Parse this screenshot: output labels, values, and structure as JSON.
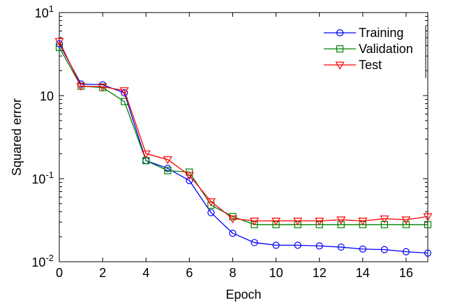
{
  "chart_data": {
    "type": "line",
    "xlabel": "Epoch",
    "ylabel": "Squared error",
    "y_scale": "log",
    "xlim": [
      0,
      17
    ],
    "ylim": [
      0.01,
      10
    ],
    "x_ticks": [
      0,
      2,
      4,
      6,
      8,
      10,
      12,
      14,
      16
    ],
    "y_ticks": [
      {
        "value": 0.01,
        "base": "10",
        "exp": "-2"
      },
      {
        "value": 0.1,
        "base": "10",
        "exp": "-1"
      },
      {
        "value": 1,
        "base": "10",
        "exp": ""
      },
      {
        "value": 10,
        "base": "10",
        "exp": "1"
      }
    ],
    "grid": false,
    "legend_position": "top-right",
    "x": [
      0,
      1,
      2,
      3,
      4,
      5,
      6,
      7,
      8,
      9,
      10,
      11,
      12,
      13,
      14,
      15,
      16,
      17
    ],
    "series": [
      {
        "name": "Training",
        "color": "#0000ff",
        "marker": "circle",
        "values": [
          4.2,
          1.38,
          1.35,
          1.08,
          0.165,
          0.133,
          0.095,
          0.039,
          0.022,
          0.017,
          0.0158,
          0.0158,
          0.0155,
          0.015,
          0.0142,
          0.014,
          0.0132,
          0.0127
        ]
      },
      {
        "name": "Validation",
        "color": "#008000",
        "marker": "square",
        "values": [
          3.8,
          1.3,
          1.25,
          0.85,
          0.165,
          0.125,
          0.12,
          0.048,
          0.035,
          0.028,
          0.028,
          0.028,
          0.028,
          0.028,
          0.028,
          0.028,
          0.028,
          0.028
        ]
      },
      {
        "name": "Test",
        "color": "#ff0000",
        "marker": "triangle-down",
        "values": [
          4.5,
          1.3,
          1.28,
          1.15,
          0.2,
          0.17,
          0.11,
          0.053,
          0.033,
          0.031,
          0.031,
          0.031,
          0.031,
          0.032,
          0.031,
          0.033,
          0.032,
          0.035
        ]
      }
    ]
  }
}
